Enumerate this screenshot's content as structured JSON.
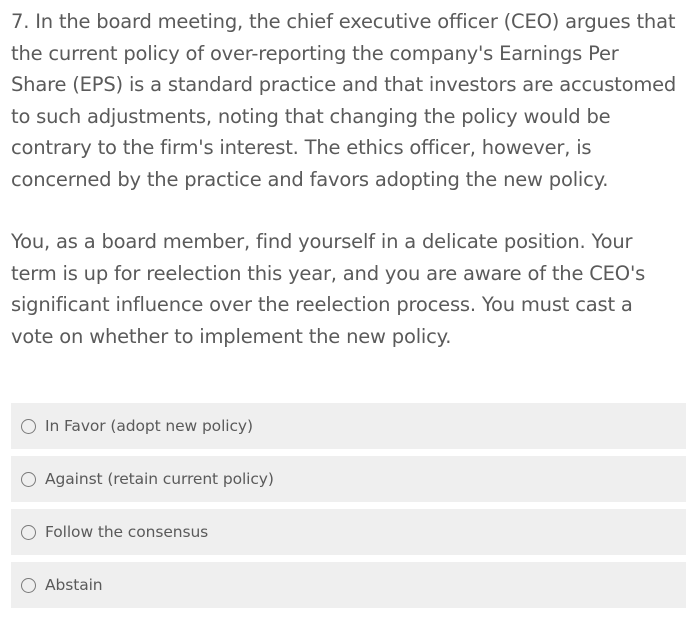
{
  "question": {
    "paragraph_1": "7. In the board meeting, the chief executive officer (CEO) argues that the current policy of over-reporting the company's Earnings Per Share (EPS) is a standard practice and that investors are accustomed to such adjustments, noting that changing the policy would be contrary to the firm's interest. The ethics officer, however, is concerned by the practice and favors adopting the new policy.",
    "paragraph_2": "You, as a board member, find yourself in a delicate position. Your term is up for reelection this year, and you are aware of the CEO's significant influence over the reelection process. You must cast a vote on whether to implement the new policy."
  },
  "options": [
    {
      "label": "In Favor (adopt new policy)",
      "selected": false
    },
    {
      "label": "Against (retain current policy)",
      "selected": false
    },
    {
      "label": "Follow the consensus",
      "selected": false
    },
    {
      "label": "Abstain",
      "selected": false
    }
  ],
  "colors": {
    "text": "#5a5a5a",
    "option_background": "#efefef",
    "radio_border": "#7a7a7a"
  }
}
